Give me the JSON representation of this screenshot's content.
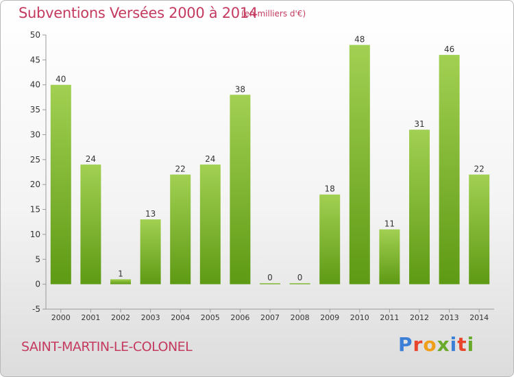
{
  "header": {
    "title": "Subventions Versées 2000 à 2014",
    "unit": "(en milliers d'€)"
  },
  "footer": {
    "commune": "SAINT-MARTIN-LE-COLONEL",
    "brand": "Proxiti"
  },
  "colors": {
    "text_accent": "#c43a5f",
    "bar_light": "#9ccc4a",
    "bar_dark": "#5e9a14",
    "brand_letters": [
      "#3b7fd6",
      "#e8452c",
      "#f0a018",
      "#6aaa2a",
      "#3b7fd6",
      "#e8452c",
      "#6aaa2a"
    ]
  },
  "chart_data": {
    "type": "bar",
    "categories": [
      "2000",
      "2001",
      "2002",
      "2003",
      "2004",
      "2005",
      "2006",
      "2007",
      "2008",
      "2009",
      "2010",
      "2011",
      "2012",
      "2013",
      "2014"
    ],
    "values": [
      40,
      24,
      1,
      13,
      22,
      24,
      38,
      0,
      0,
      18,
      48,
      11,
      31,
      46,
      22
    ],
    "title": "Subventions Versées 2000 à 2014",
    "xlabel": "",
    "ylabel": "",
    "ylim": [
      -5,
      50
    ],
    "yticks": [
      -5,
      0,
      5,
      10,
      15,
      20,
      25,
      30,
      35,
      40,
      45,
      50
    ],
    "grid": false,
    "legend": "none"
  }
}
